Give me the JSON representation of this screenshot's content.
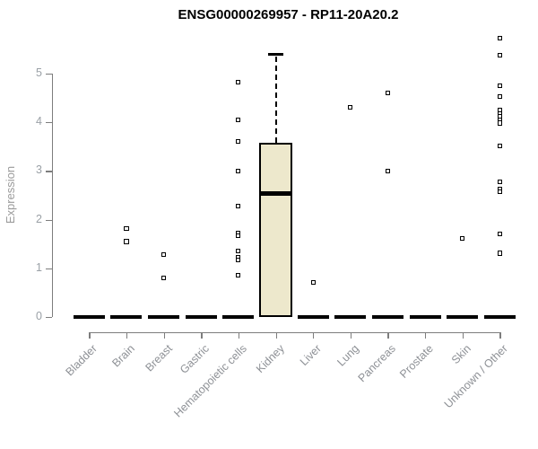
{
  "chart_data": {
    "type": "boxplot",
    "title": "ENSG00000269957 - RP11-20A20.2",
    "xlabel": "",
    "ylabel": "Expression",
    "ylim": [
      0,
      5.85
    ],
    "y_ticks": [
      0,
      1,
      2,
      3,
      4,
      5
    ],
    "grid": false,
    "legend": false,
    "groups": [
      {
        "label": "Bladder",
        "q1": 0,
        "median": 0,
        "q3": 0,
        "whisker_high": 0,
        "outliers": []
      },
      {
        "label": "Brain",
        "q1": 0,
        "median": 0,
        "q3": 0,
        "whisker_high": 0,
        "outliers": [
          1.82,
          1.55
        ]
      },
      {
        "label": "Breast",
        "q1": 0,
        "median": 0,
        "q3": 0,
        "whisker_high": 0,
        "outliers": [
          1.28,
          0.8
        ]
      },
      {
        "label": "Gastric",
        "q1": 0,
        "median": 0,
        "q3": 0,
        "whisker_high": 0,
        "outliers": []
      },
      {
        "label": "Hematopoietic cells",
        "q1": 0,
        "median": 0,
        "q3": 0,
        "whisker_high": 0,
        "outliers": [
          4.82,
          4.05,
          3.6,
          3.0,
          2.27,
          1.72,
          1.67,
          1.36,
          1.23,
          1.17,
          0.86
        ]
      },
      {
        "label": "Kidney",
        "q1": 0,
        "median": 2.53,
        "q3": 3.58,
        "whisker_high": 5.39,
        "outliers": []
      },
      {
        "label": "Liver",
        "q1": 0,
        "median": 0,
        "q3": 0,
        "whisker_high": 0,
        "outliers": [
          0.71
        ]
      },
      {
        "label": "Lung",
        "q1": 0,
        "median": 0,
        "q3": 0,
        "whisker_high": 0,
        "outliers": [
          4.31
        ]
      },
      {
        "label": "Pancreas",
        "q1": 0,
        "median": 0,
        "q3": 0,
        "whisker_high": 0,
        "outliers": [
          4.6,
          3.0
        ]
      },
      {
        "label": "Prostate",
        "q1": 0,
        "median": 0,
        "q3": 0,
        "whisker_high": 0,
        "outliers": []
      },
      {
        "label": "Skin",
        "q1": 0,
        "median": 0,
        "q3": 0,
        "whisker_high": 0,
        "outliers": [
          1.62
        ]
      },
      {
        "label": "Unknown / Other",
        "q1": 0,
        "median": 0,
        "q3": 0,
        "whisker_high": 0,
        "outliers": [
          5.72,
          5.37,
          4.74,
          4.52,
          4.25,
          4.18,
          4.11,
          4.04,
          3.98,
          3.51,
          2.77,
          2.62,
          2.57,
          1.7,
          1.31
        ]
      }
    ],
    "colors": {
      "box_fill": "#EDE8CC",
      "box_border": "#000000",
      "median": "#000000",
      "marker": "#000000",
      "axis": "#7d7d7d",
      "tick_label": "#9aa0a6",
      "axis_label": "#9b9b9b",
      "title": "#000000",
      "background": "#ffffff"
    }
  }
}
